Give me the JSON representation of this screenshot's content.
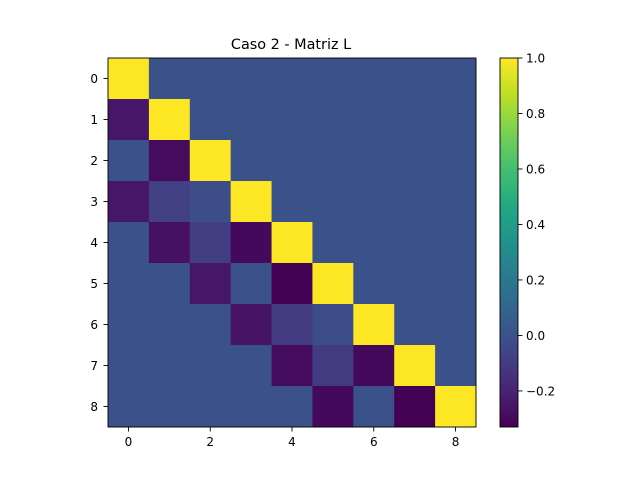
{
  "chart_data": {
    "type": "heatmap",
    "title": "Caso 2 - Matriz L",
    "xlabel": "",
    "ylabel": "",
    "colormap": "viridis",
    "rows": [
      0,
      1,
      2,
      3,
      4,
      5,
      6,
      7,
      8
    ],
    "cols": [
      0,
      1,
      2,
      3,
      4,
      5,
      6,
      7,
      8
    ],
    "x_ticks": [
      0,
      2,
      4,
      6,
      8
    ],
    "y_ticks": [
      0,
      1,
      2,
      3,
      4,
      5,
      6,
      7,
      8
    ],
    "vmin": -0.33,
    "vmax": 1.0,
    "colorbar_ticks": [
      1.0,
      0.8,
      0.6,
      0.4,
      0.2,
      0.0,
      -0.2
    ],
    "colorbar_tick_labels": [
      "1.0",
      "0.8",
      "0.6",
      "0.4",
      "0.2",
      "0.0",
      "−0.2"
    ],
    "values": [
      [
        1.0,
        0,
        0,
        0,
        0,
        0,
        0,
        0,
        0
      ],
      [
        -0.25,
        1.0,
        0,
        0,
        0,
        0,
        0,
        0,
        0
      ],
      [
        0,
        -0.29,
        1.0,
        0,
        0,
        0,
        0,
        0,
        0
      ],
      [
        -0.25,
        -0.08,
        -0.02,
        1.0,
        0,
        0,
        0,
        0,
        0
      ],
      [
        0,
        -0.27,
        -0.09,
        -0.3,
        1.0,
        0,
        0,
        0,
        0
      ],
      [
        0,
        0,
        -0.25,
        0,
        -0.33,
        1.0,
        0,
        0,
        0
      ],
      [
        0,
        0,
        0,
        -0.26,
        -0.1,
        -0.02,
        1.0,
        0,
        0
      ],
      [
        0,
        0,
        0,
        0,
        -0.29,
        -0.1,
        -0.3,
        1.0,
        0
      ],
      [
        0,
        0,
        0,
        0,
        0,
        -0.3,
        0,
        -0.33,
        1.0
      ]
    ]
  }
}
